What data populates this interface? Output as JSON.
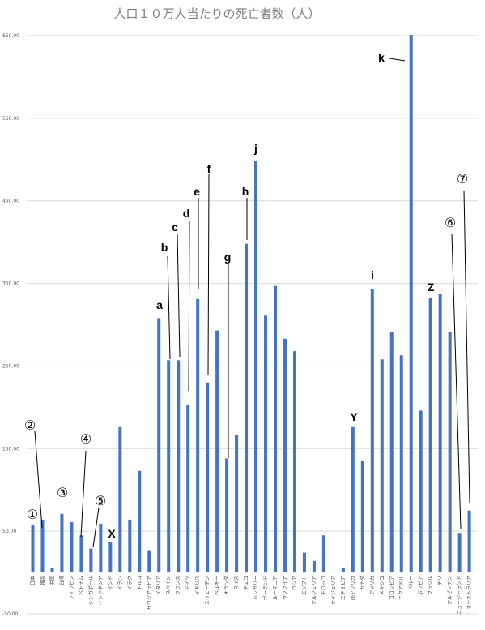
{
  "chart_data": {
    "type": "bar",
    "title": "人口１０万人当たりの死亡者数（人）",
    "color": "#4472c4",
    "yticks": [
      "650.00",
      "550.00",
      "450.00",
      "350.00",
      "250.00",
      "150.00",
      "50.00",
      "-50.00"
    ],
    "ytick_values": [
      650,
      550,
      450,
      350,
      250,
      150,
      50,
      -50
    ],
    "ylim": [
      -50,
      650
    ],
    "grid": true,
    "categories": [
      "日本",
      "韓国",
      "中国",
      "台湾",
      "フィリピン",
      "ベトナム",
      "シンガポール",
      "インドネシア",
      "インド",
      "イラン",
      "イラク",
      "トルコ",
      "サウジアラビア",
      "イタリア",
      "スペイン",
      "フランス",
      "ドイツ",
      "イギリス",
      "スウェーデン",
      "ベルギー",
      "オランダ",
      "スイス",
      "チェコ",
      "ハンガリー",
      "ポーランド",
      "ルーマニア",
      "ウクライナ",
      "ロシア",
      "エジプト",
      "アルジェリア",
      "モロッコ",
      "ナイジェリア",
      "エチオピア",
      "南アフリカ",
      "カナダ",
      "アメリカ",
      "メキシコ",
      "コロンビア",
      "エクアドル",
      "ペルー",
      "ボリビア",
      "ブラジル",
      "チリ",
      "アルゼンチン",
      "ニュージーランド",
      "オーストラリア"
    ],
    "values": [
      57,
      64,
      5,
      71,
      61,
      45,
      29,
      59,
      37,
      176,
      64,
      123,
      27,
      308,
      257,
      257,
      203,
      331,
      230,
      293,
      138,
      167,
      398,
      498,
      311,
      347,
      283,
      268,
      24,
      14,
      45,
      1,
      6,
      176,
      135,
      343,
      258,
      291,
      263,
      651,
      196,
      333,
      337,
      291,
      48,
      75
    ],
    "annotations": [
      {
        "label": "①",
        "category": "日本",
        "style": "circled"
      },
      {
        "label": "②",
        "category": "韓国",
        "style": "circled"
      },
      {
        "label": "③",
        "category": "台湾",
        "style": "circled"
      },
      {
        "label": "④",
        "category": "ベトナム",
        "style": "circled"
      },
      {
        "label": "⑤",
        "category": "シンガポール",
        "style": "circled"
      },
      {
        "label": "X",
        "category": "インド",
        "style": "letter"
      },
      {
        "label": "a",
        "category": "イタリア",
        "style": "letter"
      },
      {
        "label": "b",
        "category": "スペイン",
        "style": "letter"
      },
      {
        "label": "c",
        "category": "フランス",
        "style": "letter"
      },
      {
        "label": "d",
        "category": "ドイツ",
        "style": "letter"
      },
      {
        "label": "e",
        "category": "イギリス",
        "style": "letter"
      },
      {
        "label": "f",
        "category": "スウェーデン",
        "style": "letter"
      },
      {
        "label": "g",
        "category": "オランダ",
        "style": "letter"
      },
      {
        "label": "h",
        "category": "チェコ",
        "style": "letter"
      },
      {
        "label": "j",
        "category": "ハンガリー",
        "style": "letter"
      },
      {
        "label": "Y",
        "category": "南アフリカ",
        "style": "letter"
      },
      {
        "label": "i",
        "category": "アメリカ",
        "style": "letter"
      },
      {
        "label": "k",
        "category": "ペルー",
        "style": "letter"
      },
      {
        "label": "Z",
        "category": "チリ",
        "style": "letter"
      },
      {
        "label": "⑥",
        "category": "ニュージーランド",
        "style": "circled"
      },
      {
        "label": "⑦",
        "category": "オーストラリア",
        "style": "circled"
      }
    ]
  }
}
